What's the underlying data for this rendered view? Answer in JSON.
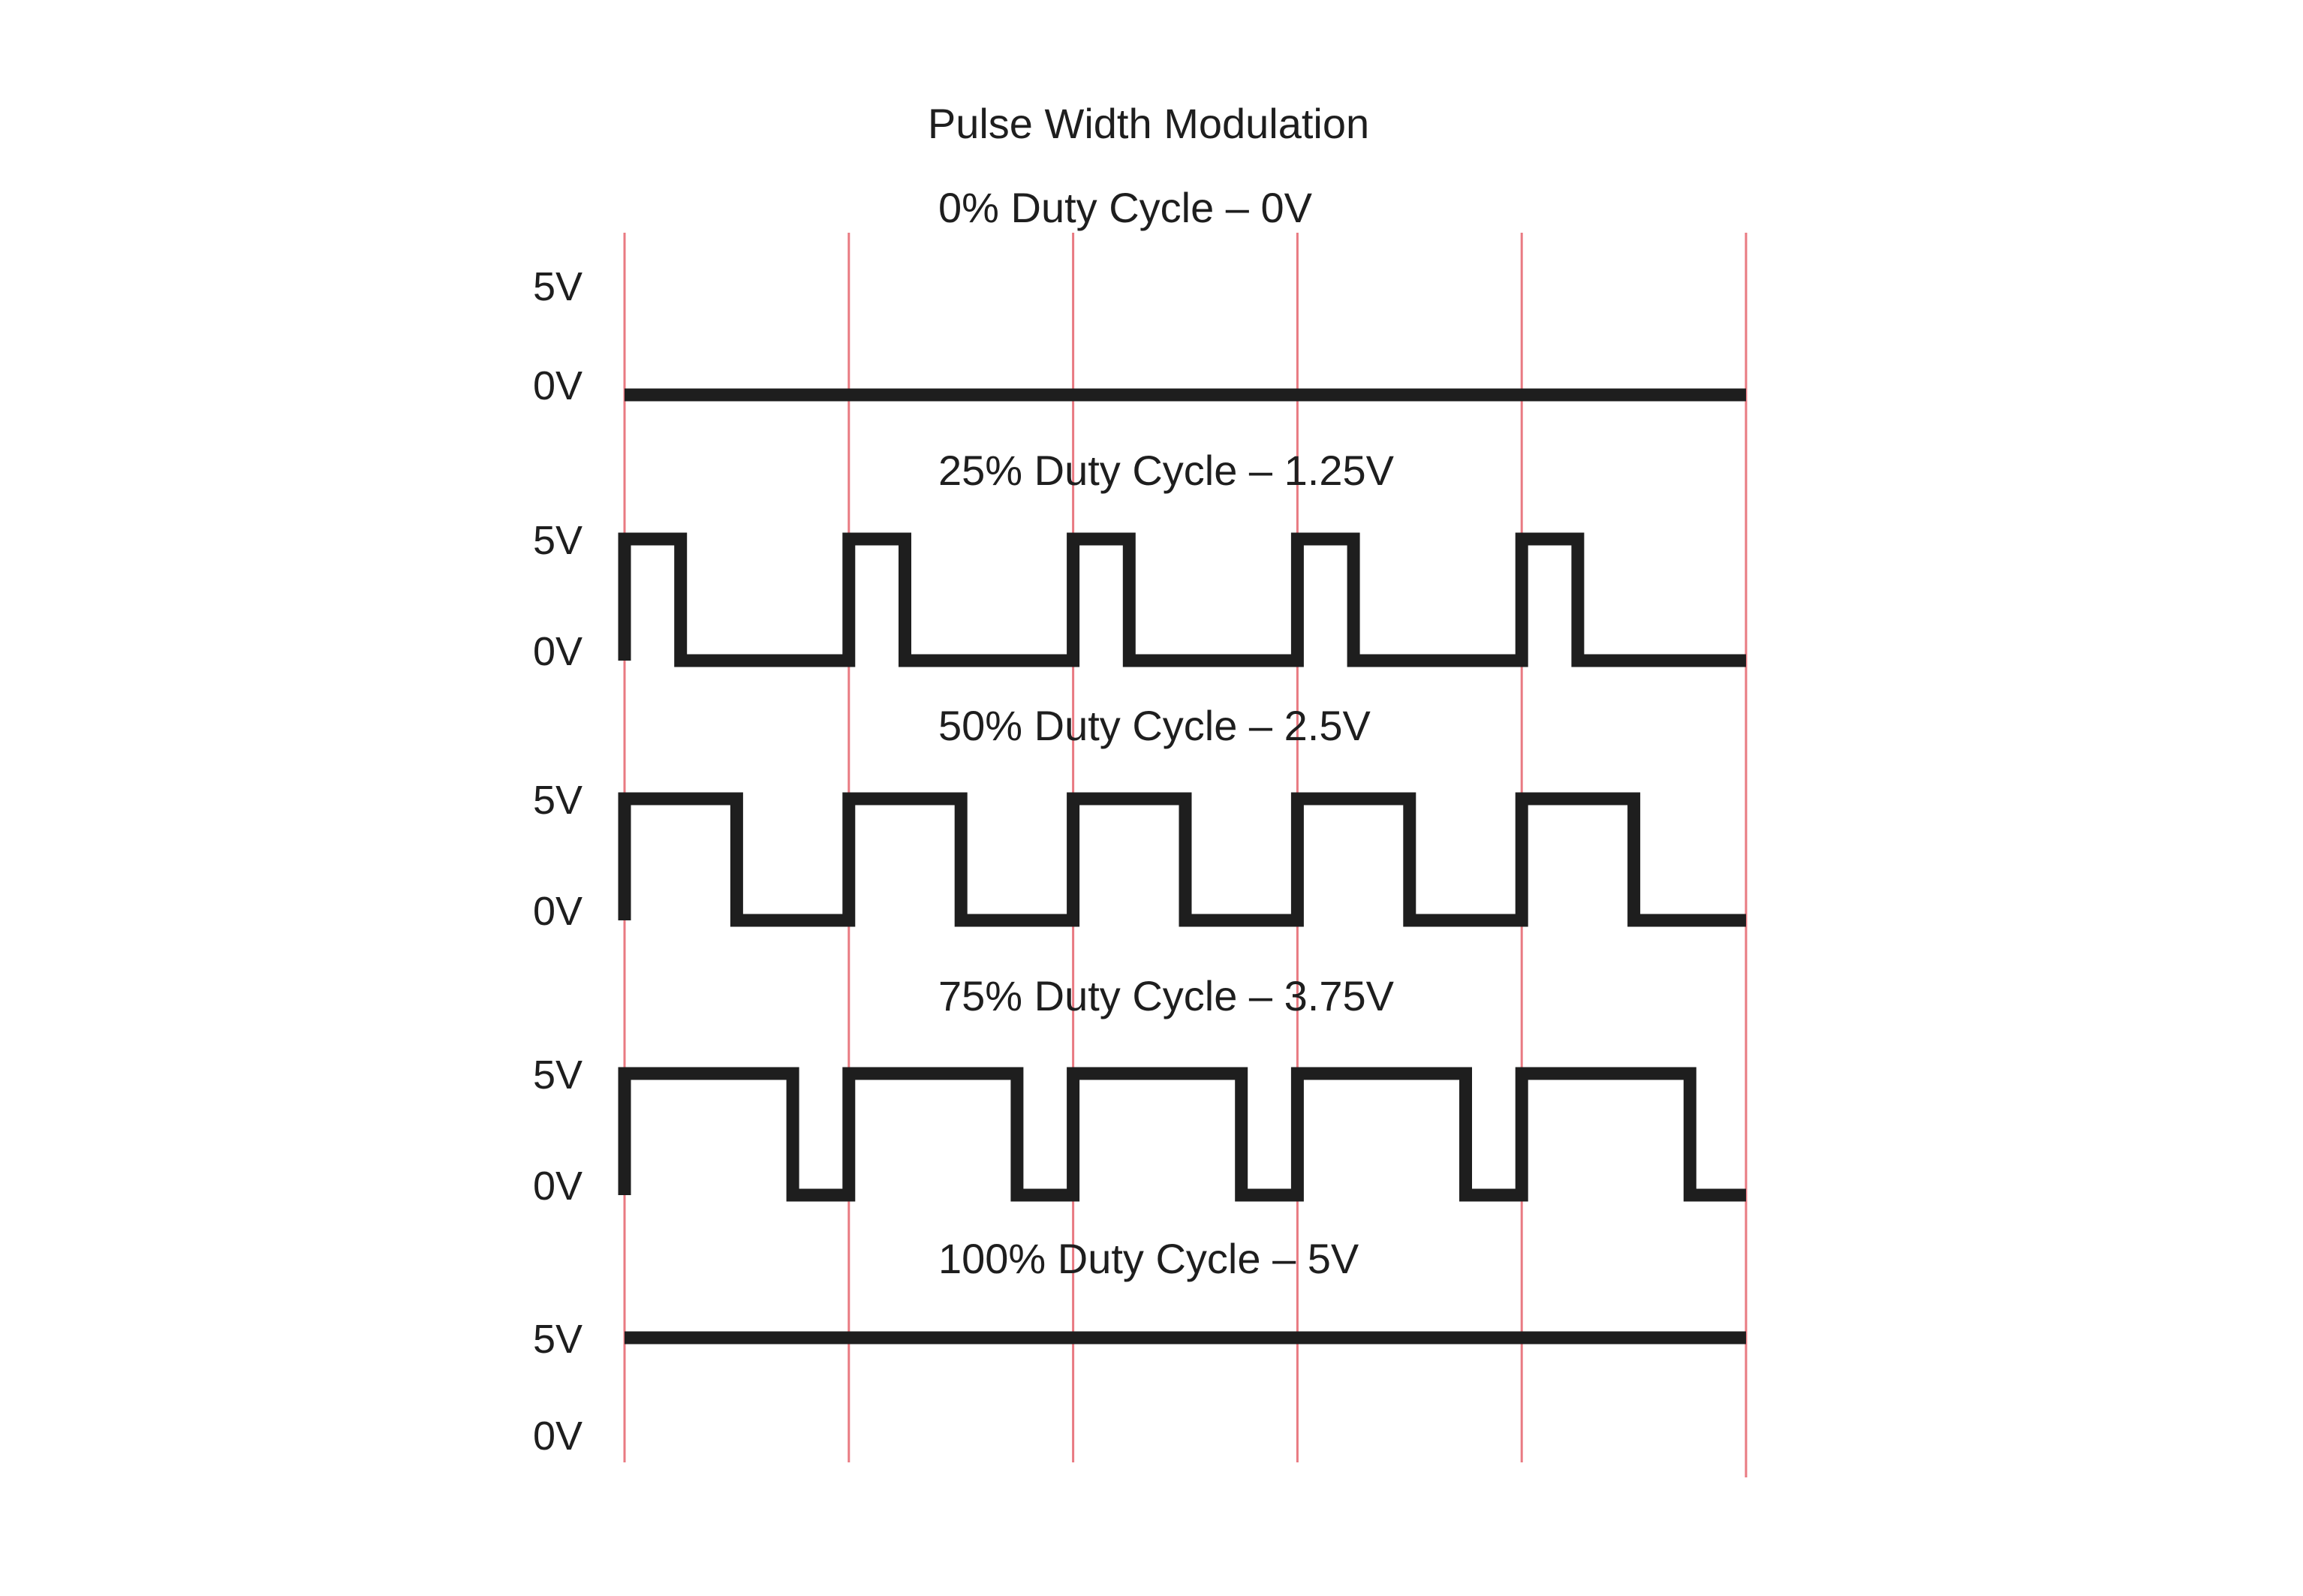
{
  "title": "Pulse Width Modulation",
  "colors": {
    "wave": "#1e1e1e",
    "gridline": "#e97a82",
    "background": "#ffffff"
  },
  "periods": 5,
  "panels": [
    {
      "label": "0% Duty Cycle – 0V",
      "duty_cycle": 0,
      "high_label": "5V",
      "low_label": "0V"
    },
    {
      "label": "25% Duty Cycle – 1.25V",
      "duty_cycle": 0.25,
      "high_label": "5V",
      "low_label": "0V"
    },
    {
      "label": "50% Duty Cycle – 2.5V",
      "duty_cycle": 0.5,
      "high_label": "5V",
      "low_label": "0V"
    },
    {
      "label": "75% Duty Cycle – 3.75V",
      "duty_cycle": 0.75,
      "high_label": "5V",
      "low_label": "0V"
    },
    {
      "label": "100% Duty Cycle – 5V",
      "duty_cycle": 1,
      "high_label": "5V",
      "low_label": "0V"
    }
  ]
}
